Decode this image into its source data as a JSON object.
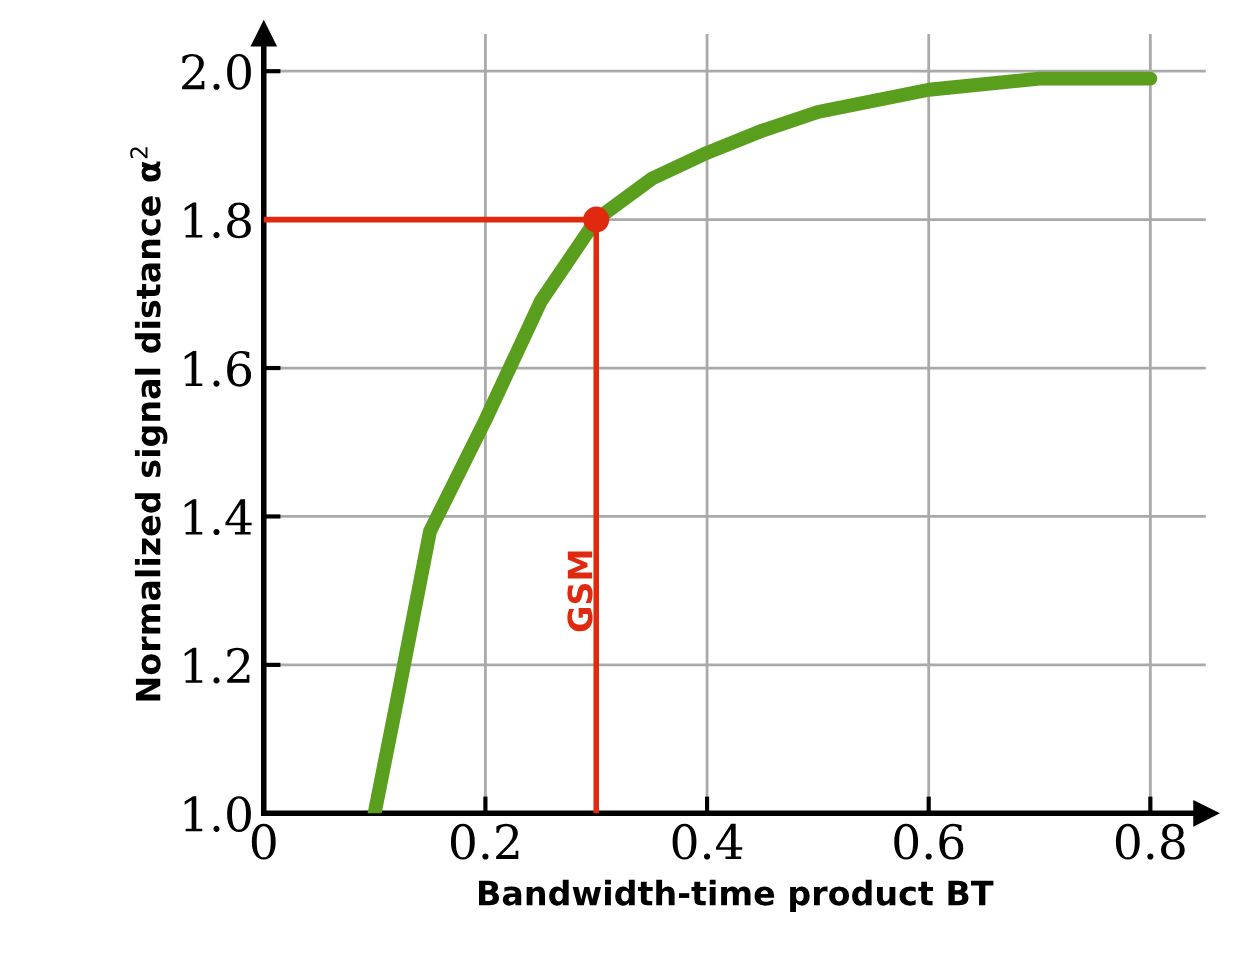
{
  "chart_data": {
    "type": "line",
    "xlabel": "Bandwidth-time product BT",
    "ylabel": "Normalized signal distance α$^{2}$",
    "xlim": [
      0,
      0.85
    ],
    "ylim": [
      1.0,
      2.05
    ],
    "xticks": [
      {
        "value": 0,
        "label": "0"
      },
      0.2,
      0.4,
      0.6,
      0.8
    ],
    "yticks": [
      {
        "value": 1.0,
        "label": "1.0"
      },
      1.2,
      1.4,
      1.6,
      1.8,
      {
        "value": 2.0,
        "label": "2.0"
      }
    ],
    "grid": true,
    "series": [
      {
        "color": "#5a9e1e",
        "x": [
          0.1,
          0.12,
          0.15,
          0.2,
          0.25,
          0.3,
          0.35,
          0.4,
          0.45,
          0.5,
          0.6,
          0.7,
          0.8
        ],
        "values": [
          1.0,
          1.15,
          1.38,
          1.53,
          1.69,
          1.8,
          1.855,
          1.89,
          1.92,
          1.945,
          1.975,
          1.99,
          1.99
        ]
      },
      {
        "type": "line",
        "color": "#e02a10",
        "x": [
          0,
          0.3,
          0.3
        ],
        "values": [
          1.8,
          1.8,
          1.0
        ]
      },
      {
        "type": "scatter",
        "color": "#e02a10",
        "x": [
          0.3
        ],
        "values": [
          1.8
        ]
      }
    ],
    "annotations": [
      {
        "text": "GSM",
        "x": 0.3,
        "y": 1.3
      }
    ]
  }
}
